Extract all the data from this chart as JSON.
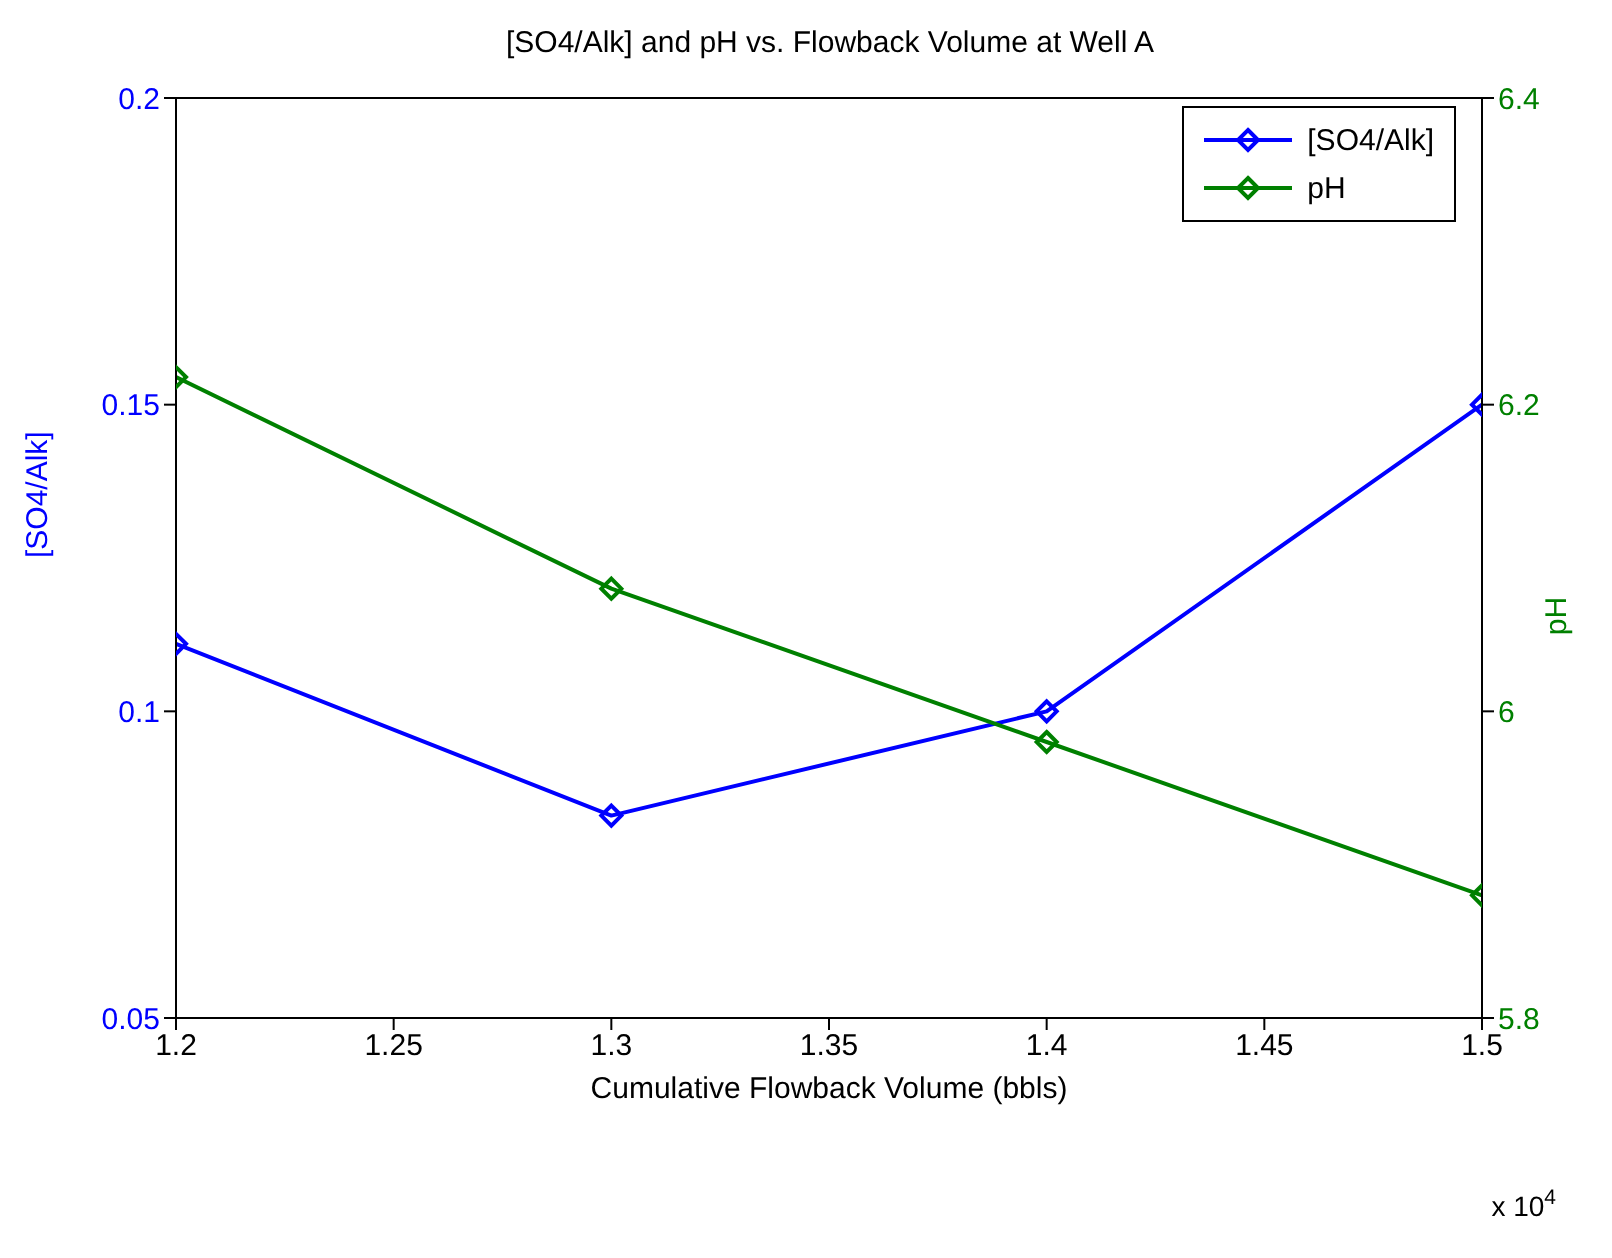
{
  "chart_data": {
    "type": "line",
    "title": "[SO4/Alk] and pH vs. Flowback Volume at Well A",
    "xlabel": "Cumulative Flowback Volume (bbls)",
    "ylabel": "[SO4/Alk]",
    "y2label": "pH",
    "x": [
      1.2,
      1.3,
      1.4,
      1.5
    ],
    "series": [
      {
        "name": "[SO4/Alk]",
        "color": "#0000ff",
        "values": [
          0.111,
          0.083,
          0.1,
          0.15
        ]
      },
      {
        "name": "pH",
        "color": "#008000",
        "values": [
          6.218,
          6.08,
          5.98,
          5.88
        ],
        "axis": "y2"
      }
    ],
    "xlim": [
      1.2,
      1.5
    ],
    "xticks": [
      1.2,
      1.25,
      1.3,
      1.35,
      1.4,
      1.45,
      1.5
    ],
    "ylim": [
      0.05,
      0.2
    ],
    "yticks": [
      0.05,
      0.1,
      0.15,
      0.2
    ],
    "y2lim": [
      5.8,
      6.4
    ],
    "y2ticks": [
      5.8,
      6,
      6.2,
      6.4
    ],
    "annotations": [
      "x 10$^{4}$"
    ],
    "legend": "top right",
    "marker": "diamond",
    "line_style": "solid"
  }
}
